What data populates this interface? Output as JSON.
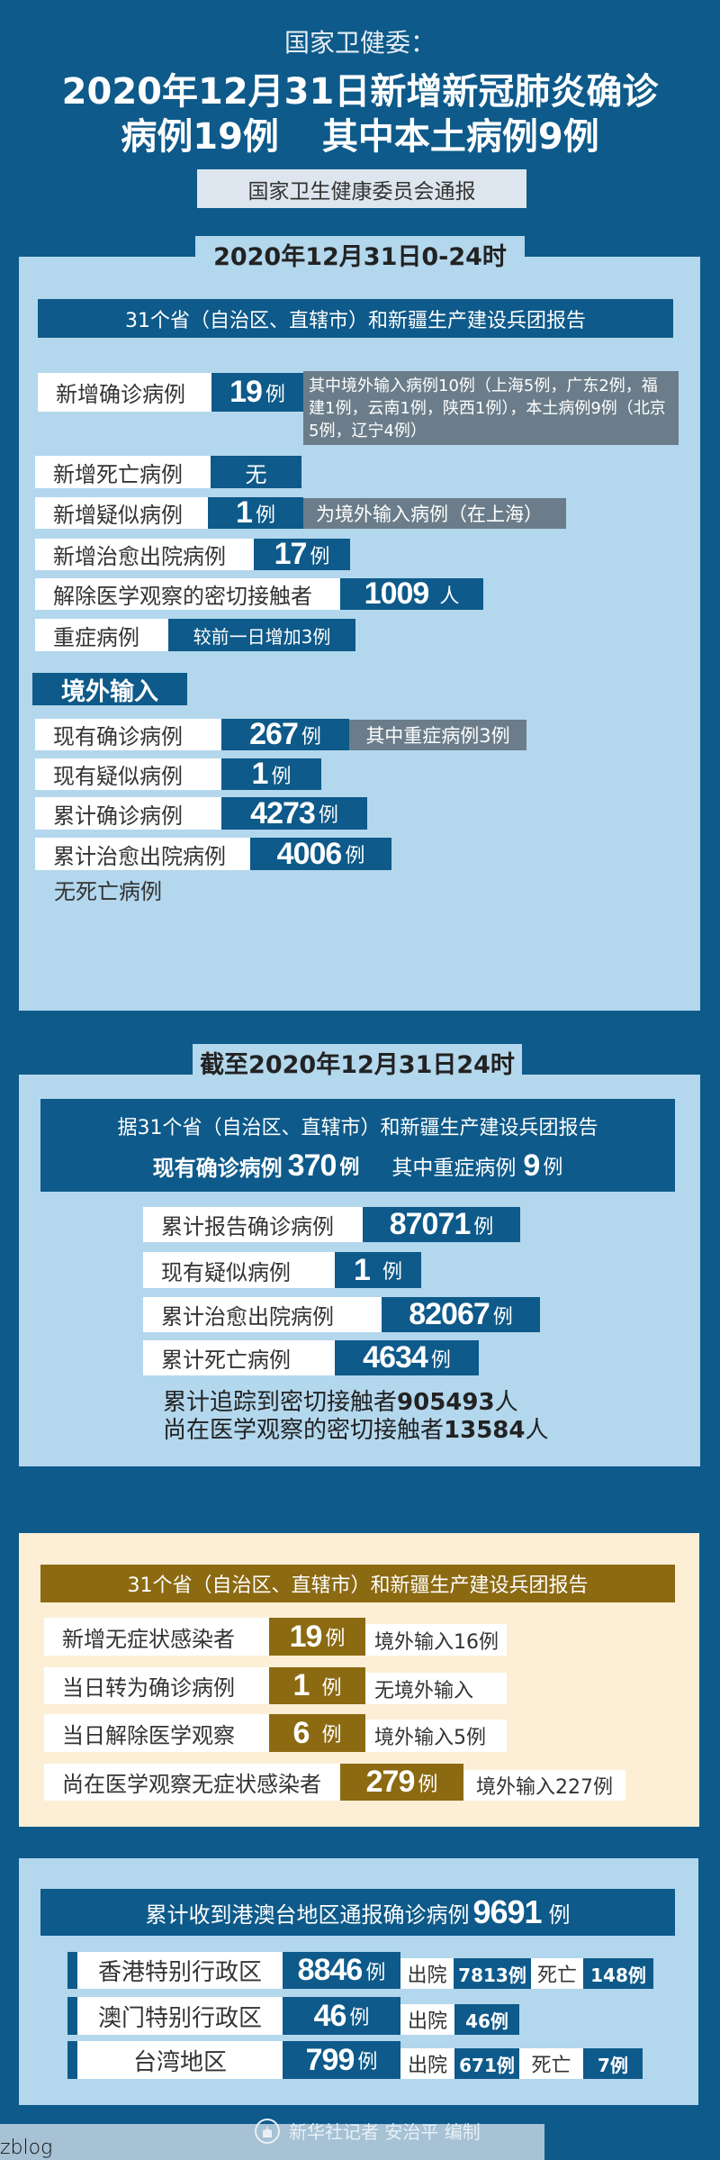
{
  "header": {
    "org": "国家卫健委：",
    "title_line1": "2020年12月31日新增新冠肺炎确诊",
    "title_line2a": "病例19例",
    "title_line2b": "其中本土病例9例",
    "source": "国家卫生健康委员会通报"
  },
  "daily": {
    "tab": "2020年12月31日0-24时",
    "banner": "31个省（自治区、直辖市）和新疆生产建设兵团报告",
    "rows": [
      {
        "label": "新增确诊病例",
        "value": "19",
        "unit": "例",
        "note": "其中境外输入病例10例（上海5例，广东2例，福建1例，云南1例，陕西1例），本土病例9例（北京5例，辽宁4例）"
      },
      {
        "label": "新增死亡病例",
        "value": "无"
      },
      {
        "label": "新增疑似病例",
        "value": "1",
        "unit": "例",
        "note": "为境外输入病例（在上海）"
      },
      {
        "label": "新增治愈出院病例",
        "value": "17",
        "unit": "例"
      },
      {
        "label": "解除医学观察的密切接触者",
        "value": "1009",
        "unit": "人"
      },
      {
        "label": "重症病例",
        "note": "较前一日增加3例"
      }
    ],
    "imported": {
      "title": "境外输入",
      "rows": [
        {
          "label": "现有确诊病例",
          "value": "267",
          "unit": "例",
          "note": "其中重症病例3例"
        },
        {
          "label": "现有疑似病例",
          "value": "1",
          "unit": "例"
        },
        {
          "label": "累计确诊病例",
          "value": "4273",
          "unit": "例"
        },
        {
          "label": "累计治愈出院病例",
          "value": "4006",
          "unit": "例"
        }
      ],
      "footnote": "无死亡病例"
    }
  },
  "cumulative": {
    "tab": "截至2020年12月31日24时",
    "banner": "据31个省（自治区、直辖市）和新疆生产建设兵团报告",
    "current_label": "现有确诊病例",
    "current_value": "370",
    "unit": "例",
    "severe_label": "其中重症病例",
    "severe_value": "9",
    "rows": [
      {
        "label": "累计报告确诊病例",
        "value": "87071",
        "unit": "例"
      },
      {
        "label": "现有疑似病例",
        "value": "1",
        "unit": "例"
      },
      {
        "label": "累计治愈出院病例",
        "value": "82067",
        "unit": "例"
      },
      {
        "label": "累计死亡病例",
        "value": "4634",
        "unit": "例"
      }
    ],
    "contacts_traced": {
      "label": "累计追踪到密切接触者",
      "value": "905493",
      "unit": "人"
    },
    "contacts_observed": {
      "label": "尚在医学观察的密切接触者",
      "value": "13584",
      "unit": "人"
    }
  },
  "asymptomatic": {
    "banner": "31个省（自治区、直辖市）和新疆生产建设兵团报告",
    "rows": [
      {
        "label": "新增无症状感染者",
        "value": "19",
        "unit": "例",
        "note": "境外输入16例"
      },
      {
        "label": "当日转为确诊病例",
        "value": "1",
        "unit": "例",
        "note": "无境外输入"
      },
      {
        "label": "当日解除医学观察",
        "value": "6",
        "unit": "例",
        "note": "境外输入5例"
      },
      {
        "label": "尚在医学观察无症状感染者",
        "value": "279",
        "unit": "例",
        "note": "境外输入227例"
      }
    ]
  },
  "hmt": {
    "banner_text": "累计收到港澳台地区通报确诊病例",
    "banner_value": "9691",
    "banner_unit": "例",
    "rows": [
      {
        "region": "香港特别行政区",
        "value": "8846",
        "unit": "例",
        "discharged_label": "出院",
        "discharged": "7813例",
        "death_label": "死亡",
        "deaths": "148例"
      },
      {
        "region": "澳门特别行政区",
        "value": "46",
        "unit": "例",
        "discharged_label": "出院",
        "discharged": "46例"
      },
      {
        "region": "台湾地区",
        "value": "799",
        "unit": "例",
        "discharged_label": "出院",
        "discharged": "671例",
        "death_label": "死亡",
        "deaths": "7例"
      }
    ]
  },
  "footer": {
    "credit": "新华社记者 安治平 编制",
    "watermark": "zblog",
    "logo_icon": "xinhua-logo-icon"
  },
  "colors": {
    "dark_blue": "#0e5a8a",
    "light_blue": "#b3d7ed",
    "grey_note": "#6b7d8a",
    "cream": "#fcefd6",
    "gold": "#8c6a12"
  }
}
